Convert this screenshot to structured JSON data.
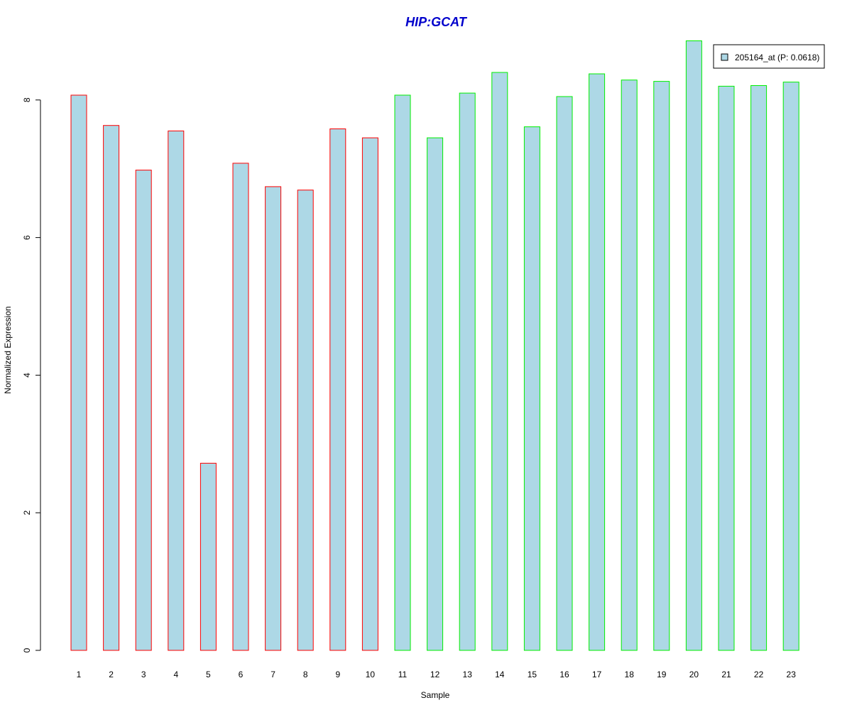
{
  "colors": {
    "bar_fill": "#add8e6",
    "group1_border": "#ff0000",
    "group2_border": "#00ee00",
    "title": "#0000cc",
    "axis": "#000000"
  },
  "chart_data": {
    "type": "bar",
    "title": "HIP:GCAT",
    "xlabel": "Sample",
    "ylabel": "Normalized Expression",
    "ylim": [
      0,
      9
    ],
    "yticks": [
      0,
      2,
      4,
      6,
      8
    ],
    "categories": [
      "1",
      "2",
      "3",
      "4",
      "5",
      "6",
      "7",
      "8",
      "9",
      "10",
      "11",
      "12",
      "13",
      "14",
      "15",
      "16",
      "17",
      "18",
      "19",
      "20",
      "21",
      "22",
      "23"
    ],
    "series": [
      {
        "name": "205164_at (P: 0.0618)",
        "values": [
          8.07,
          7.63,
          6.98,
          7.55,
          2.72,
          7.08,
          6.74,
          6.69,
          7.58,
          7.45,
          8.07,
          7.45,
          8.1,
          8.4,
          7.61,
          8.05,
          8.38,
          8.29,
          8.27,
          8.86,
          8.2,
          8.21,
          8.26
        ],
        "border_groups": [
          1,
          1,
          1,
          1,
          1,
          1,
          1,
          1,
          1,
          1,
          2,
          2,
          2,
          2,
          2,
          2,
          2,
          2,
          2,
          2,
          2,
          2,
          2
        ]
      }
    ],
    "legend": {
      "position": "top-right"
    },
    "grid": false
  }
}
